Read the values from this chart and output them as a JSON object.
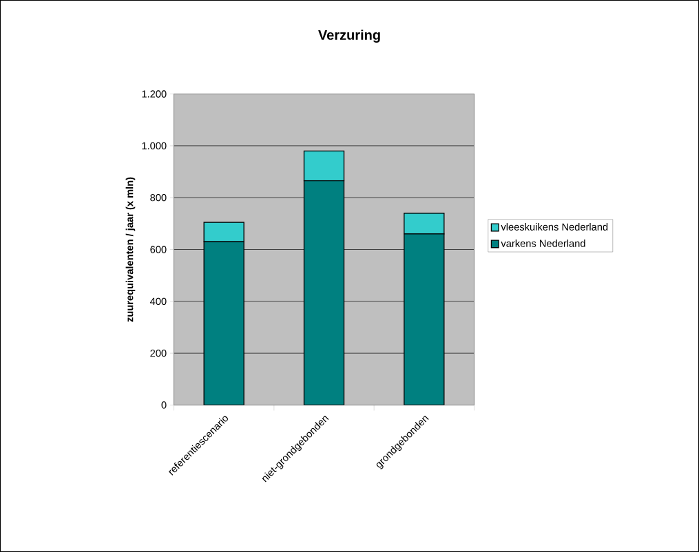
{
  "chart_data": {
    "type": "bar",
    "stacked": true,
    "title": "Verzuring",
    "ylabel": "zuurequivalenten / jaar (x mln)",
    "categories": [
      "referentiescenario",
      "niet-grondgebonden",
      "grondgebonden"
    ],
    "series": [
      {
        "name": "varkens Nederland",
        "color": "#008080",
        "values": [
          630,
          865,
          660
        ]
      },
      {
        "name": "vleeskuikens Nederland",
        "color": "#33cccc",
        "values": [
          75,
          115,
          80
        ]
      }
    ],
    "ylim": [
      0,
      1200
    ],
    "yticks": [
      0,
      200,
      400,
      600,
      800,
      {
        "value": 1000,
        "label": "1.000"
      },
      {
        "value": 1200,
        "label": "1.200"
      }
    ],
    "grid": "y",
    "legend": "right"
  }
}
